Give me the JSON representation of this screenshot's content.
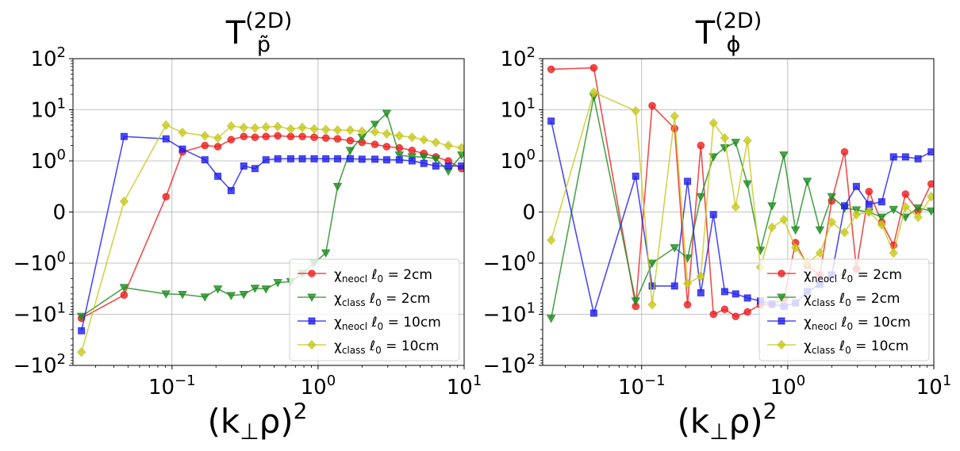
{
  "chart_data": [
    {
      "type": "line",
      "id": "left",
      "title": "T",
      "title_sup": "(2D)",
      "title_sub": "p̃",
      "xlabel_base": "(k",
      "xlabel_sub": "⊥",
      "xlabel_tail": "ρ)",
      "xlabel_sup": "2",
      "xscale": "log",
      "yscale": "symlog",
      "xlim": [
        0.021,
        10
      ],
      "ylim": [
        -100,
        100
      ],
      "grid": true,
      "legend_loc": "lower right",
      "x_ticks": [
        {
          "base": "10",
          "exp": "−1",
          "value": 0.1
        },
        {
          "base": "10",
          "exp": "0",
          "value": 1
        },
        {
          "base": "10",
          "exp": "1",
          "value": 10
        }
      ],
      "y_ticks": [
        {
          "neg": "",
          "base": "10",
          "exp": "2",
          "value": 100
        },
        {
          "neg": "",
          "base": "10",
          "exp": "1",
          "value": 10
        },
        {
          "neg": "",
          "base": "10",
          "exp": "0",
          "value": 1
        },
        {
          "neg": "",
          "base": "0",
          "exp": "",
          "value": 0
        },
        {
          "neg": "−",
          "base": "10",
          "exp": "0",
          "value": -1
        },
        {
          "neg": "−",
          "base": "10",
          "exp": "1",
          "value": -10
        },
        {
          "neg": "−",
          "base": "10",
          "exp": "2",
          "value": -100
        }
      ],
      "series": [
        {
          "chi": "χ",
          "chi_sub": "neocl",
          "ell": "ℓ",
          "ell_sub": "0",
          "eq": " = 2cm",
          "color": "#ee1f1f",
          "marker": "circle",
          "x": [
            0.024,
            0.047,
            0.091,
            0.118,
            0.168,
            0.206,
            0.254,
            0.31,
            0.37,
            0.44,
            0.53,
            0.65,
            0.78,
            0.94,
            1.13,
            1.36,
            1.66,
            2.0,
            2.45,
            2.95,
            3.6,
            4.4,
            5.3,
            6.4,
            7.8,
            9.6
          ],
          "y": [
            -12,
            -4.2,
            0.3,
            1.5,
            2.0,
            1.9,
            2.6,
            3.0,
            2.9,
            3.0,
            3.1,
            3.0,
            3.0,
            2.9,
            2.8,
            2.7,
            2.5,
            2.3,
            2.1,
            1.9,
            1.8,
            1.6,
            1.4,
            1.2,
            1.0,
            0.85
          ]
        },
        {
          "chi": "χ",
          "chi_sub": "class",
          "ell": "ℓ",
          "ell_sub": "0",
          "eq": " = 2cm",
          "color": "#1f8c1f",
          "marker": "triangle-down",
          "x": [
            0.024,
            0.047,
            0.091,
            0.118,
            0.168,
            0.206,
            0.254,
            0.31,
            0.37,
            0.44,
            0.53,
            0.65,
            0.78,
            0.94,
            1.13,
            1.36,
            1.66,
            2.0,
            2.45,
            2.95,
            3.6,
            4.4,
            5.3,
            6.4,
            7.8,
            9.6
          ],
          "y": [
            -11,
            -3.0,
            -4.0,
            -4.1,
            -4.6,
            -3.2,
            -4.3,
            -4.1,
            -3.1,
            -3.2,
            -2.4,
            -2.3,
            -1.6,
            -1.0,
            -0.8,
            0.5,
            1.6,
            2.9,
            5.2,
            8.5,
            1.3,
            1.2,
            1.2,
            1.1,
            0.8,
            1.3
          ]
        },
        {
          "chi": "χ",
          "chi_sub": "neocl",
          "ell": "ℓ",
          "ell_sub": "0",
          "eq": " = 10cm",
          "color": "#1f1fee",
          "marker": "square",
          "x": [
            0.024,
            0.047,
            0.091,
            0.118,
            0.168,
            0.206,
            0.254,
            0.31,
            0.37,
            0.44,
            0.53,
            0.65,
            0.78,
            0.94,
            1.13,
            1.36,
            1.66,
            2.0,
            2.45,
            2.95,
            3.6,
            4.4,
            5.3,
            6.4,
            7.8,
            9.6
          ],
          "y": [
            -21,
            3.0,
            2.7,
            1.7,
            1.05,
            0.7,
            0.42,
            0.9,
            0.85,
            1.05,
            1.1,
            1.1,
            1.1,
            1.1,
            1.1,
            1.1,
            1.1,
            1.08,
            1.08,
            1.05,
            1.05,
            1.0,
            0.95,
            0.9,
            0.9,
            0.9
          ]
        },
        {
          "chi": "χ",
          "chi_sub": "class",
          "ell": "ℓ",
          "ell_sub": "0",
          "eq": " = 10cm",
          "color": "#c8c81f",
          "marker": "diamond",
          "x": [
            0.024,
            0.047,
            0.091,
            0.118,
            0.168,
            0.206,
            0.254,
            0.31,
            0.37,
            0.44,
            0.53,
            0.65,
            0.78,
            0.94,
            1.13,
            1.36,
            1.66,
            2.0,
            2.45,
            2.95,
            3.6,
            4.4,
            5.3,
            6.4,
            7.8,
            9.6
          ],
          "y": [
            -55,
            0.21,
            5.0,
            3.6,
            3.1,
            2.8,
            4.8,
            4.5,
            4.4,
            4.6,
            4.7,
            4.2,
            4.5,
            4.2,
            4.1,
            4.0,
            4.0,
            3.8,
            3.7,
            3.4,
            3.1,
            2.9,
            2.6,
            2.3,
            2.0,
            1.8
          ]
        }
      ]
    },
    {
      "type": "line",
      "id": "right",
      "title": "T",
      "title_sup": "(2D)",
      "title_sub": "ϕ",
      "xlabel_base": "(k",
      "xlabel_sub": "⊥",
      "xlabel_tail": "ρ)",
      "xlabel_sup": "2",
      "xscale": "log",
      "yscale": "symlog",
      "xlim": [
        0.021,
        10
      ],
      "ylim": [
        -100,
        100
      ],
      "grid": true,
      "legend_loc": "lower right",
      "x_ticks": [
        {
          "base": "10",
          "exp": "−1",
          "value": 0.1
        },
        {
          "base": "10",
          "exp": "0",
          "value": 1
        },
        {
          "base": "10",
          "exp": "1",
          "value": 10
        }
      ],
      "y_ticks": [
        {
          "neg": "",
          "base": "10",
          "exp": "2",
          "value": 100
        },
        {
          "neg": "",
          "base": "10",
          "exp": "1",
          "value": 10
        },
        {
          "neg": "",
          "base": "10",
          "exp": "0",
          "value": 1
        },
        {
          "neg": "",
          "base": "0",
          "exp": "",
          "value": 0
        },
        {
          "neg": "−",
          "base": "10",
          "exp": "0",
          "value": -1
        },
        {
          "neg": "−",
          "base": "10",
          "exp": "1",
          "value": -10
        },
        {
          "neg": "−",
          "base": "10",
          "exp": "2",
          "value": -100
        }
      ],
      "series": [
        {
          "chi": "χ",
          "chi_sub": "neocl",
          "ell": "ℓ",
          "ell_sub": "0",
          "eq": " = 2cm",
          "color": "#ee1f1f",
          "marker": "circle",
          "x": [
            0.024,
            0.047,
            0.091,
            0.118,
            0.168,
            0.206,
            0.254,
            0.31,
            0.37,
            0.44,
            0.53,
            0.65,
            0.78,
            0.94,
            1.13,
            1.36,
            1.66,
            2.0,
            2.45,
            2.95,
            3.6,
            4.4,
            5.3,
            6.4,
            7.8,
            9.6
          ],
          "y": [
            62,
            66,
            -7,
            12,
            4.3,
            -6.5,
            2.0,
            -10,
            -8.0,
            -11,
            -9.0,
            -6.5,
            -6.5,
            -5.0,
            -0.6,
            -1.1,
            -1.7,
            0.22,
            1.5,
            -1.3,
            0.4,
            -0.2,
            -0.65,
            0.35,
            0.02,
            0.55
          ]
        },
        {
          "chi": "χ",
          "chi_sub": "class",
          "ell": "ℓ",
          "ell_sub": "0",
          "eq": " = 2cm",
          "color": "#1f8c1f",
          "marker": "triangle-down",
          "x": [
            0.024,
            0.047,
            0.091,
            0.118,
            0.168,
            0.206,
            0.254,
            0.31,
            0.37,
            0.44,
            0.53,
            0.65,
            0.78,
            0.94,
            1.13,
            1.36,
            1.66,
            2.0,
            2.45,
            2.95,
            3.6,
            4.4,
            5.3,
            6.4,
            7.8,
            9.6
          ],
          "y": [
            -12,
            18,
            -5.5,
            -1.0,
            -0.7,
            -0.9,
            0.3,
            1.2,
            1.8,
            2.3,
            0.55,
            -0.75,
            0.12,
            1.3,
            -0.35,
            0.6,
            -0.35,
            0.3,
            0.08,
            0.04,
            0.0,
            -0.1,
            0.05,
            -0.1,
            0.08,
            0.02
          ]
        },
        {
          "chi": "χ",
          "chi_sub": "neocl",
          "ell": "ℓ",
          "ell_sub": "0",
          "eq": " = 10cm",
          "color": "#1f1fee",
          "marker": "square",
          "x": [
            0.024,
            0.047,
            0.091,
            0.118,
            0.168,
            0.206,
            0.254,
            0.31,
            0.37,
            0.44,
            0.53,
            0.65,
            0.78,
            0.94,
            1.13,
            1.36,
            1.66,
            2.0,
            2.45,
            2.95,
            3.6,
            4.4,
            5.3,
            6.4,
            7.8,
            9.6
          ],
          "y": [
            6.0,
            -9.5,
            0.7,
            -2.8,
            -2.8,
            0.6,
            -3.8,
            -0.05,
            -3.6,
            -4.0,
            -4.8,
            -5.5,
            -6.3,
            -7.0,
            -6.0,
            -3.6,
            -2.6,
            -1.7,
            0.12,
            0.5,
            0.15,
            0.2,
            1.2,
            1.2,
            1.1,
            1.5
          ]
        },
        {
          "chi": "χ",
          "chi_sub": "class",
          "ell": "ℓ",
          "ell_sub": "0",
          "eq": " = 10cm",
          "color": "#c8c81f",
          "marker": "diamond",
          "x": [
            0.024,
            0.047,
            0.091,
            0.118,
            0.168,
            0.206,
            0.254,
            0.31,
            0.37,
            0.44,
            0.53,
            0.65,
            0.78,
            0.94,
            1.13,
            1.36,
            1.66,
            2.0,
            2.45,
            2.95,
            3.6,
            4.4,
            5.3,
            6.4,
            7.8,
            9.6
          ],
          "y": [
            -0.55,
            22,
            9.5,
            -6.5,
            7.5,
            -2.5,
            -1.8,
            5.5,
            2.8,
            0.1,
            2.5,
            -1.2,
            -0.3,
            -0.15,
            -0.7,
            -1.0,
            -0.8,
            -0.2,
            -0.4,
            -0.05,
            0.0,
            -0.25,
            -0.8,
            0.1,
            -0.1,
            0.3
          ]
        }
      ]
    }
  ]
}
